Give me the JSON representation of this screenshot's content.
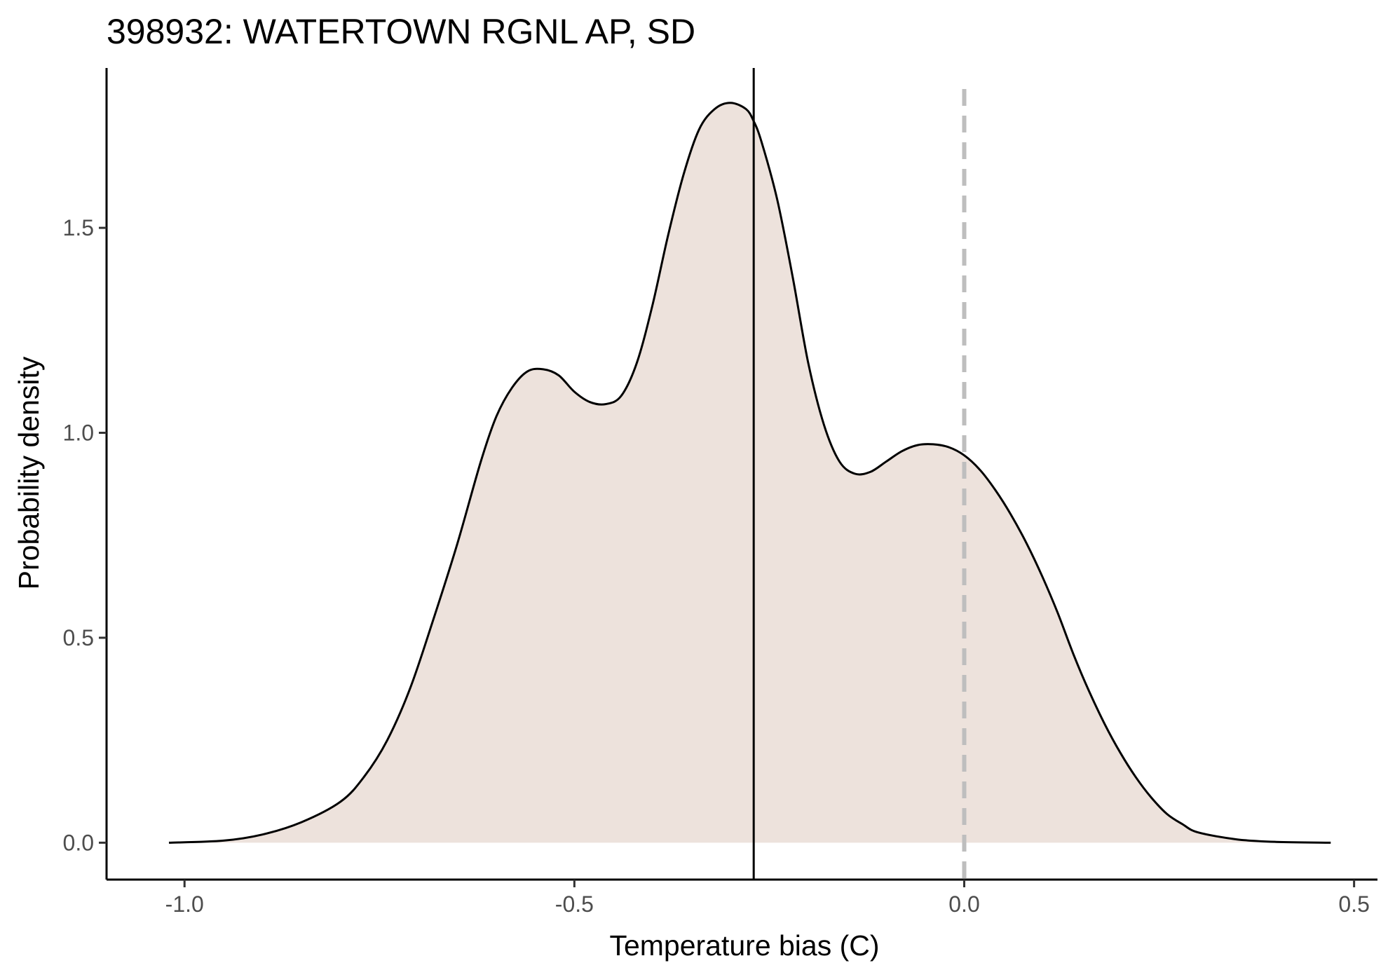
{
  "chart_data": {
    "type": "area",
    "title": "398932: WATERTOWN RGNL AP, SD",
    "xlabel": "Temperature bias (C)",
    "ylabel": "Probability density",
    "xlim": [
      -1.1,
      0.53
    ],
    "ylim": [
      -0.09,
      1.89
    ],
    "x_ticks": [
      -1.0,
      -0.5,
      0.0,
      0.5
    ],
    "x_tick_labels": [
      "-1.0",
      "-0.5",
      "0.0",
      "0.5"
    ],
    "y_ticks": [
      0.0,
      0.5,
      1.0,
      1.5
    ],
    "y_tick_labels": [
      "0.0",
      "0.5",
      "1.0",
      "1.5"
    ],
    "grid": false,
    "fill_color": "#ede2dc",
    "line_color": "#000000",
    "series": [
      {
        "x": [
          -1.02,
          -0.95,
          -0.9,
          -0.85,
          -0.8,
          -0.77,
          -0.74,
          -0.71,
          -0.68,
          -0.65,
          -0.62,
          -0.6,
          -0.58,
          -0.56,
          -0.54,
          -0.52,
          -0.5,
          -0.48,
          -0.46,
          -0.44,
          -0.42,
          -0.4,
          -0.38,
          -0.36,
          -0.34,
          -0.32,
          -0.3,
          -0.28,
          -0.27,
          -0.26,
          -0.24,
          -0.22,
          -0.2,
          -0.18,
          -0.16,
          -0.14,
          -0.12,
          -0.1,
          -0.08,
          -0.06,
          -0.04,
          -0.02,
          0.0,
          0.02,
          0.04,
          0.06,
          0.08,
          0.1,
          0.12,
          0.14,
          0.16,
          0.18,
          0.2,
          0.22,
          0.24,
          0.26,
          0.28,
          0.3,
          0.35,
          0.4,
          0.47
        ],
        "y": [
          0.0,
          0.005,
          0.02,
          0.05,
          0.1,
          0.16,
          0.25,
          0.38,
          0.55,
          0.73,
          0.93,
          1.04,
          1.11,
          1.15,
          1.155,
          1.14,
          1.1,
          1.075,
          1.07,
          1.09,
          1.17,
          1.31,
          1.48,
          1.63,
          1.74,
          1.79,
          1.805,
          1.79,
          1.76,
          1.71,
          1.57,
          1.38,
          1.17,
          1.02,
          0.93,
          0.9,
          0.905,
          0.93,
          0.955,
          0.97,
          0.972,
          0.965,
          0.945,
          0.91,
          0.86,
          0.8,
          0.73,
          0.65,
          0.56,
          0.46,
          0.37,
          0.29,
          0.22,
          0.16,
          0.11,
          0.07,
          0.045,
          0.025,
          0.008,
          0.002,
          0.0
        ]
      }
    ],
    "reference_lines": [
      {
        "axis": "x",
        "value": -0.27,
        "style": "solid",
        "color": "#000000"
      },
      {
        "axis": "x",
        "value": 0.0,
        "style": "dashed",
        "color": "#bebebe"
      }
    ]
  }
}
